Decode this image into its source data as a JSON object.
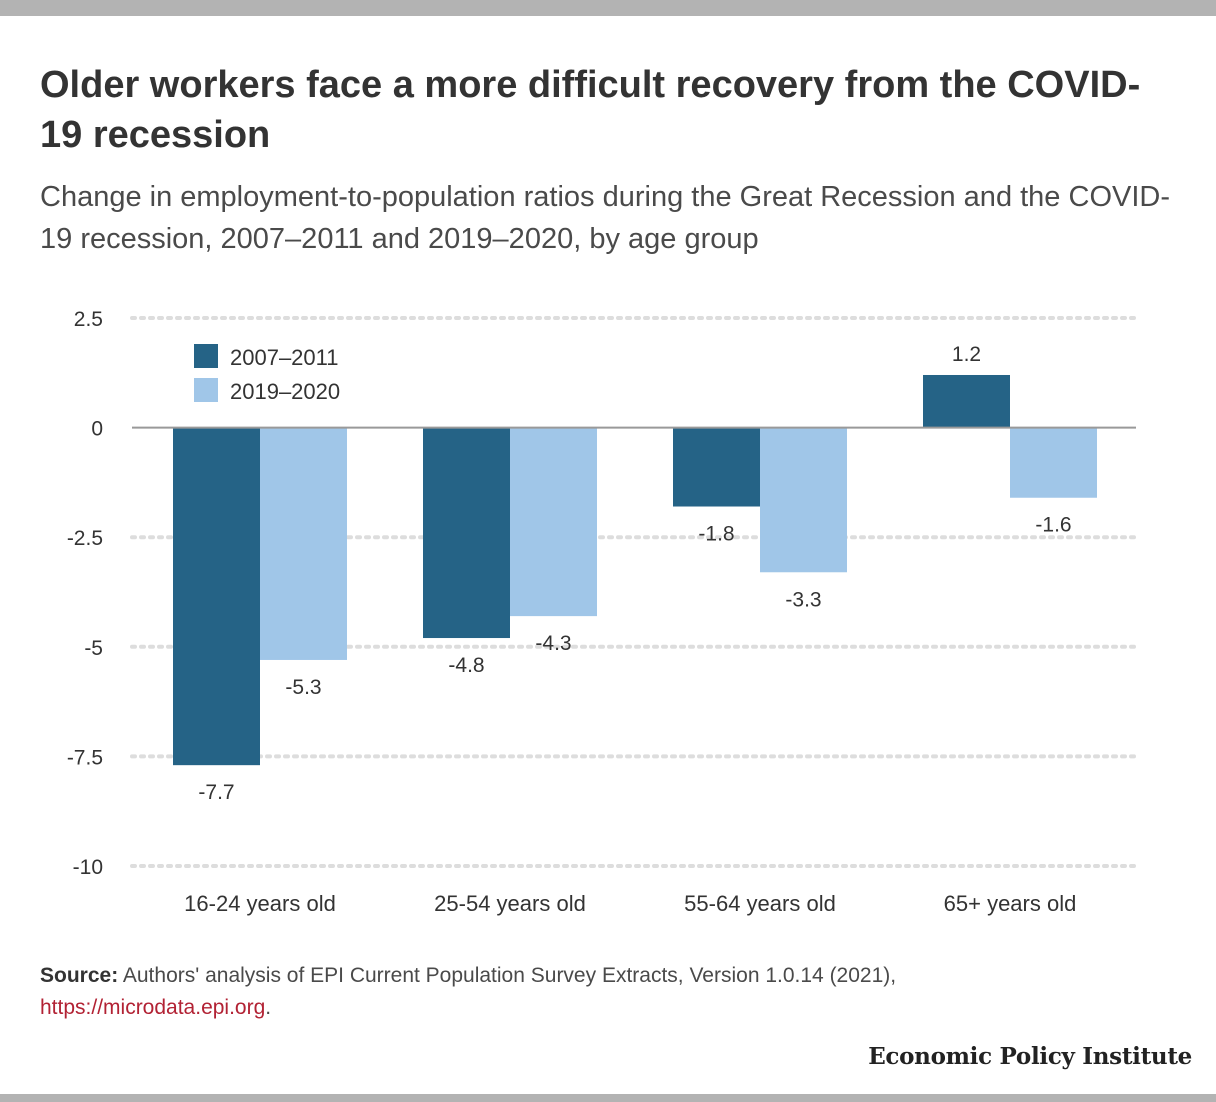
{
  "chart_data": {
    "type": "bar",
    "title": "Older workers face a more difficult recovery from the COVID-19 recession",
    "subtitle": "Change in employment-to-population ratios during the Great Recession and the COVID-19 recession, 2007–2011 and 2019–2020, by age group",
    "categories": [
      "16-24 years old",
      "25-54 years old",
      "55-64 years old",
      "65+ years old"
    ],
    "series": [
      {
        "name": "2007–2011",
        "values": [
          -7.7,
          -4.8,
          -1.8,
          1.2
        ],
        "color": "#256386"
      },
      {
        "name": "2019–2020",
        "values": [
          -5.3,
          -4.3,
          -3.3,
          -1.6
        ],
        "color": "#a0c6e8"
      }
    ],
    "ylim": [
      -10,
      2.5
    ],
    "yticks": [
      2.5,
      0,
      -2.5,
      -5,
      -7.5,
      -10
    ],
    "ytick_labels": [
      "2.5",
      "0",
      "-2.5",
      "-5",
      "-7.5",
      "-10"
    ],
    "grid": true,
    "legend": "top-left",
    "xlabel": "",
    "ylabel": ""
  },
  "source": {
    "label": "Source:",
    "text": " Authors' analysis of EPI Current Population Survey Extracts, Version 1.0.14 (2021), ",
    "link": "https://microdata.epi.org",
    "end": "."
  },
  "brand": "Economic Policy Institute",
  "colors": {
    "grid": "#dddddd",
    "zero_line": "#999999",
    "text": "#333333"
  }
}
